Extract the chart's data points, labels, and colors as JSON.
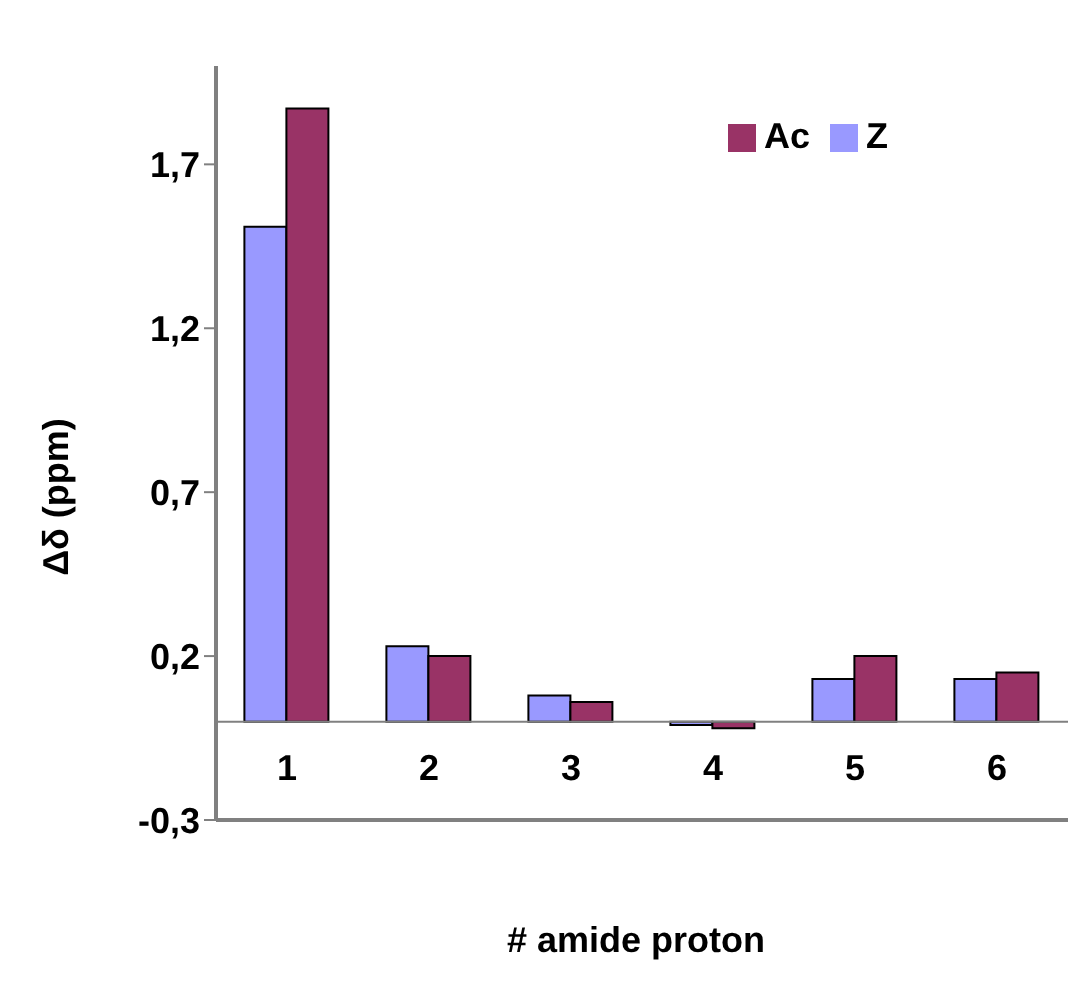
{
  "chart_data": {
    "type": "bar",
    "xlabel": "# amide proton",
    "ylabel": "Δδ (ppm)",
    "categories": [
      "1",
      "2",
      "3",
      "4",
      "5",
      "6"
    ],
    "series": [
      {
        "name": "Z",
        "color": "#9999ff",
        "values": [
          1.51,
          0.23,
          0.08,
          -0.01,
          0.13,
          0.13
        ]
      },
      {
        "name": "Ac",
        "color": "#993366",
        "values": [
          1.87,
          0.2,
          0.06,
          -0.02,
          0.2,
          0.15
        ]
      }
    ],
    "ylim": [
      -0.3,
      2.0
    ],
    "yticks": [
      {
        "value": -0.3,
        "label": "-0,3"
      },
      {
        "value": 0.2,
        "label": "0,2"
      },
      {
        "value": 0.7,
        "label": "0,7"
      },
      {
        "value": 1.2,
        "label": "1,2"
      },
      {
        "value": 1.7,
        "label": "1,7"
      }
    ],
    "grid": false,
    "legend": "top right"
  }
}
